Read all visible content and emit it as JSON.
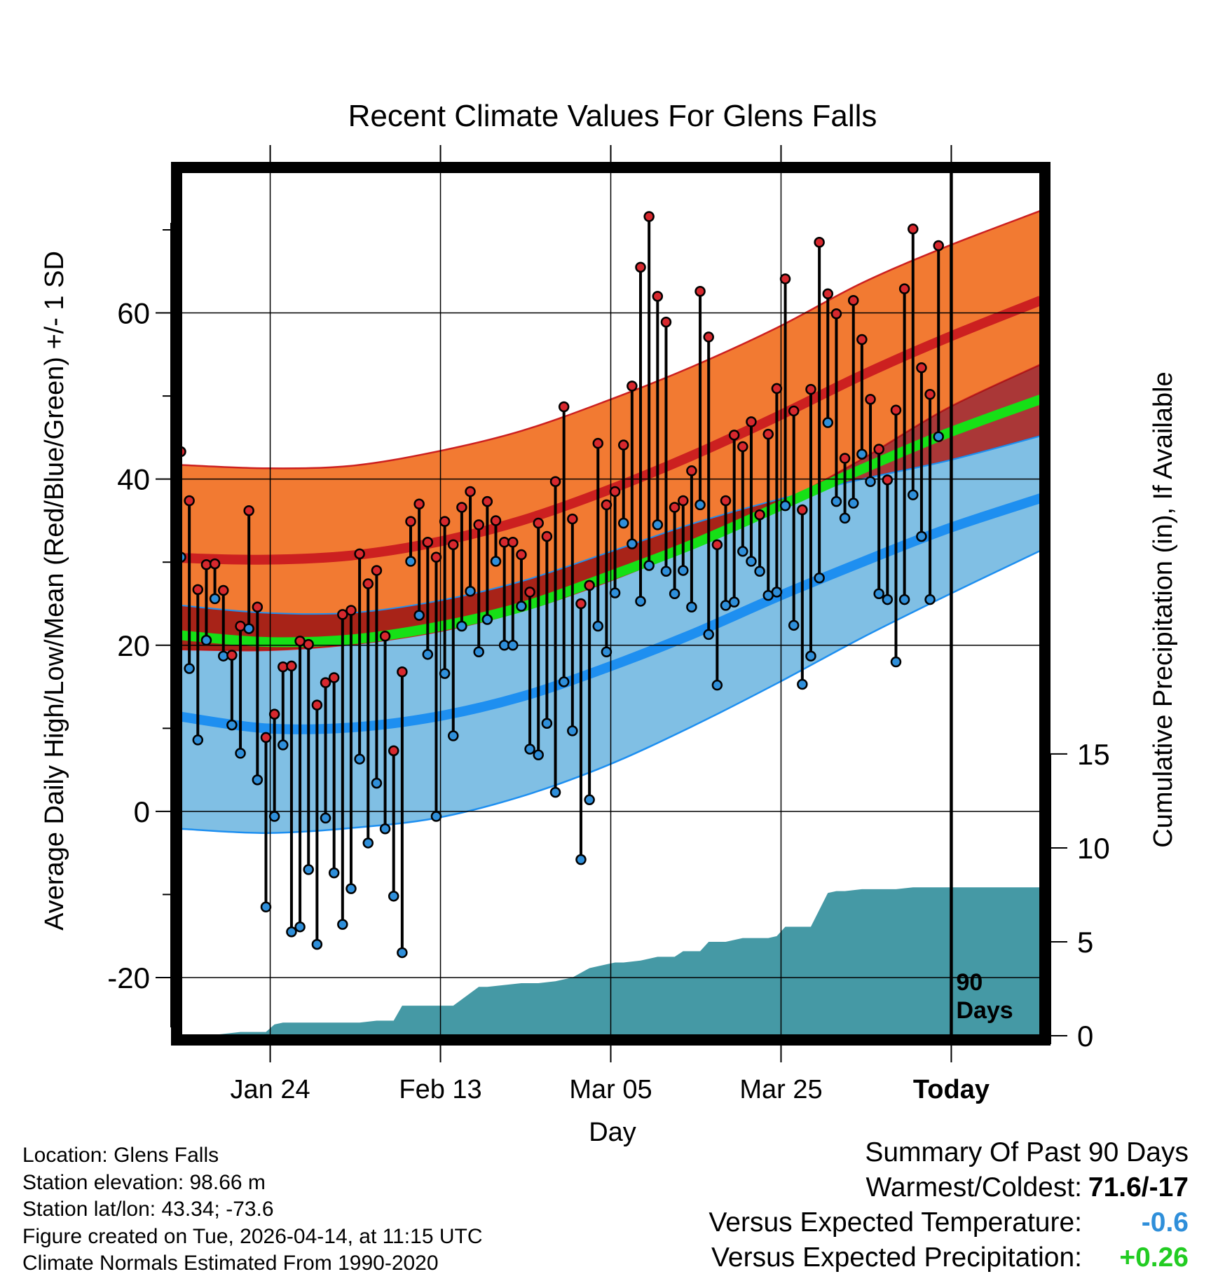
{
  "title": "Recent Climate Values For Glens Falls",
  "chart_data": {
    "type": "line",
    "title": "Recent Climate Values For Glens Falls",
    "xlabel": "Day",
    "ylabel": "Average Daily High/Low/Mean (Red/Blue/Green) +/- 1 SD",
    "y2label": "Cumulative Precipitation (in), If Available",
    "ylim": [
      -27,
      77
    ],
    "y2lim": [
      0,
      46
    ],
    "xlim": [
      0,
      101
    ],
    "yticks": [
      "-20",
      "0",
      "20",
      "40",
      "60"
    ],
    "yvals": [
      -20,
      0,
      20,
      40,
      60
    ],
    "y2ticks": [
      "0",
      "5",
      "10",
      "15"
    ],
    "y2vals": [
      0,
      5,
      10,
      15
    ],
    "xticks": [
      "Jan 24",
      "Feb 13",
      "Mar 05",
      "Mar 25",
      "Today"
    ],
    "xvals": [
      10.5,
      30.5,
      50.5,
      70.5,
      90.5
    ],
    "today_label": "90 Days",
    "today_x": 90.5,
    "normals_x": [
      0,
      10,
      20,
      30,
      40,
      50,
      60,
      70,
      80,
      90,
      101
    ],
    "normal_high": [
      30.5,
      30.3,
      30.8,
      32.4,
      35.0,
      38.6,
      42.8,
      47.5,
      52.5,
      57.0,
      61.5
    ],
    "normal_high_upper": [
      41.7,
      41.3,
      41.6,
      43.3,
      45.8,
      49.4,
      53.5,
      58.2,
      63.6,
      68.0,
      72.3
    ],
    "normal_high_lower": [
      19.5,
      19.4,
      20.1,
      21.6,
      24.1,
      27.6,
      31.8,
      36.8,
      42.4,
      48.5,
      53.8
    ],
    "normal_low": [
      11.4,
      10.0,
      10.1,
      11.4,
      13.8,
      17.3,
      21.3,
      25.8,
      30.0,
      34.0,
      37.7
    ],
    "normal_low_upper": [
      24.8,
      23.9,
      23.9,
      25.3,
      27.7,
      31.1,
      34.6,
      37.5,
      40.0,
      42.2,
      45.2
    ],
    "normal_low_lower": [
      -2.1,
      -2.6,
      -2.0,
      -0.8,
      1.8,
      5.5,
      10.2,
      15.4,
      20.9,
      26.0,
      31.4
    ],
    "normal_mean": [
      21.2,
      20.4,
      20.7,
      22.2,
      24.6,
      28.2,
      32.1,
      36.6,
      41.2,
      45.5,
      49.6
    ],
    "daily_x": [
      0,
      1,
      2,
      3,
      4,
      5,
      6,
      7,
      8,
      9,
      10,
      11,
      12,
      13,
      14,
      15,
      16,
      17,
      18,
      19,
      20,
      21,
      22,
      23,
      24,
      25,
      26,
      27,
      28,
      29,
      30,
      31,
      32,
      33,
      34,
      35,
      36,
      37,
      38,
      39,
      40,
      41,
      42,
      43,
      44,
      45,
      46,
      47,
      48,
      49,
      50,
      51,
      52,
      53,
      54,
      55,
      56,
      57,
      58,
      59,
      60,
      61,
      62,
      63,
      64,
      65,
      66,
      67,
      68,
      69,
      70,
      71,
      72,
      73,
      74,
      75,
      76,
      77,
      78,
      79,
      80,
      81,
      82,
      83,
      84,
      85,
      86,
      87,
      88,
      89
    ],
    "daily_high": [
      43.3,
      37.4,
      26.7,
      29.7,
      29.8,
      26.6,
      18.8,
      22.3,
      36.2,
      24.6,
      8.9,
      11.7,
      17.4,
      17.5,
      20.5,
      20.1,
      12.8,
      15.5,
      16.1,
      23.7,
      24.2,
      31.0,
      27.4,
      29.0,
      21.1,
      7.3,
      16.8,
      34.9,
      37.0,
      32.4,
      30.6,
      34.9,
      32.1,
      36.6,
      38.5,
      34.5,
      37.3,
      35.0,
      32.4,
      32.4,
      30.9,
      26.4,
      34.7,
      33.1,
      39.7,
      48.7,
      35.2,
      25.0,
      27.2,
      44.3,
      36.9,
      38.5,
      44.1,
      51.2,
      65.5,
      71.6,
      62.0,
      58.9,
      36.6,
      37.4,
      41.0,
      62.6,
      57.1,
      32.1,
      37.4,
      45.3,
      43.9,
      46.9,
      35.7,
      45.4,
      50.9,
      64.1,
      48.2,
      36.3,
      50.8,
      68.5,
      62.3,
      59.9,
      42.5,
      61.5,
      56.8,
      49.6,
      43.6,
      39.9,
      48.3,
      62.9,
      70.1,
      53.4,
      50.2,
      68.1
    ],
    "daily_low": [
      30.6,
      17.2,
      8.6,
      20.6,
      25.6,
      18.7,
      10.4,
      7.0,
      22.0,
      3.8,
      -11.5,
      -0.6,
      8.0,
      -14.5,
      -13.9,
      -7.0,
      -16.0,
      -0.8,
      -7.4,
      -13.6,
      -9.3,
      6.3,
      -3.8,
      3.4,
      -2.1,
      -10.2,
      -17.0,
      30.1,
      23.6,
      18.9,
      -0.6,
      16.6,
      9.1,
      22.3,
      26.5,
      19.2,
      23.1,
      30.1,
      20.0,
      20.0,
      24.7,
      7.5,
      6.8,
      10.6,
      2.3,
      15.6,
      9.7,
      -5.8,
      1.4,
      22.3,
      19.2,
      26.3,
      34.7,
      32.2,
      25.3,
      29.6,
      34.5,
      28.9,
      26.2,
      29.0,
      24.6,
      36.9,
      21.3,
      15.2,
      24.8,
      25.2,
      31.3,
      30.1,
      28.9,
      26.0,
      26.4,
      36.8,
      22.4,
      15.3,
      18.7,
      28.1,
      46.8,
      37.3,
      35.3,
      37.1,
      43.0,
      39.7,
      26.2,
      25.5,
      18.0,
      25.5,
      38.1,
      33.1,
      25.5,
      45.1
    ],
    "precip_x": [
      0,
      3,
      5,
      7,
      9,
      10,
      11,
      12,
      13,
      15,
      17,
      19,
      21,
      23,
      25,
      26,
      27,
      28,
      30,
      32,
      35,
      36,
      38,
      40,
      42,
      44,
      46,
      48,
      50,
      51,
      52,
      54,
      56,
      58,
      59,
      60,
      61,
      62,
      63,
      64,
      66,
      67,
      68,
      69,
      70,
      71,
      72,
      73,
      74,
      76,
      77,
      78,
      80,
      82,
      84,
      86,
      88,
      89
    ],
    "precip": [
      0.0,
      0.0,
      0.1,
      0.2,
      0.2,
      0.2,
      0.6,
      0.7,
      0.7,
      0.7,
      0.7,
      0.7,
      0.7,
      0.8,
      0.8,
      1.6,
      1.6,
      1.6,
      1.6,
      1.6,
      2.6,
      2.6,
      2.7,
      2.8,
      2.8,
      2.9,
      3.1,
      3.6,
      3.8,
      3.9,
      3.9,
      4.0,
      4.2,
      4.2,
      4.5,
      4.5,
      4.5,
      5.0,
      5.0,
      5.0,
      5.2,
      5.2,
      5.2,
      5.2,
      5.3,
      5.8,
      5.8,
      5.8,
      5.8,
      7.6,
      7.7,
      7.7,
      7.8,
      7.8,
      7.8,
      7.9,
      7.9,
      7.9
    ]
  },
  "info": {
    "location": "Location: Glens Falls",
    "elevation": "Station elevation: 98.66 m",
    "latlon": "Station lat/lon: 43.34; -73.6",
    "created": "Figure created on Tue, 2026-04-14, at 11:15 UTC",
    "normals": "Climate Normals Estimated From 1990-2020"
  },
  "summary": {
    "title": "Summary Of Past 90 Days",
    "warmest_label": "Warmest/Coldest:",
    "warmest_value": "71.6/-17",
    "temp_label": "Versus Expected Temperature:",
    "temp_value": "-0.6",
    "precip_label": "Versus Expected Precipitation:",
    "precip_value": "+0.26"
  },
  "colors": {
    "high_band": "#f27a32",
    "high_line": "#cc2020",
    "low_band": "#80bfe4",
    "low_line": "#1e8ff0",
    "mean_line": "#16e016",
    "precip": "#4599a5",
    "high_dot": "#d7282e",
    "low_dot": "#2f8fda",
    "temp_value": "#2f8fda",
    "precip_value": "#22cc22"
  }
}
